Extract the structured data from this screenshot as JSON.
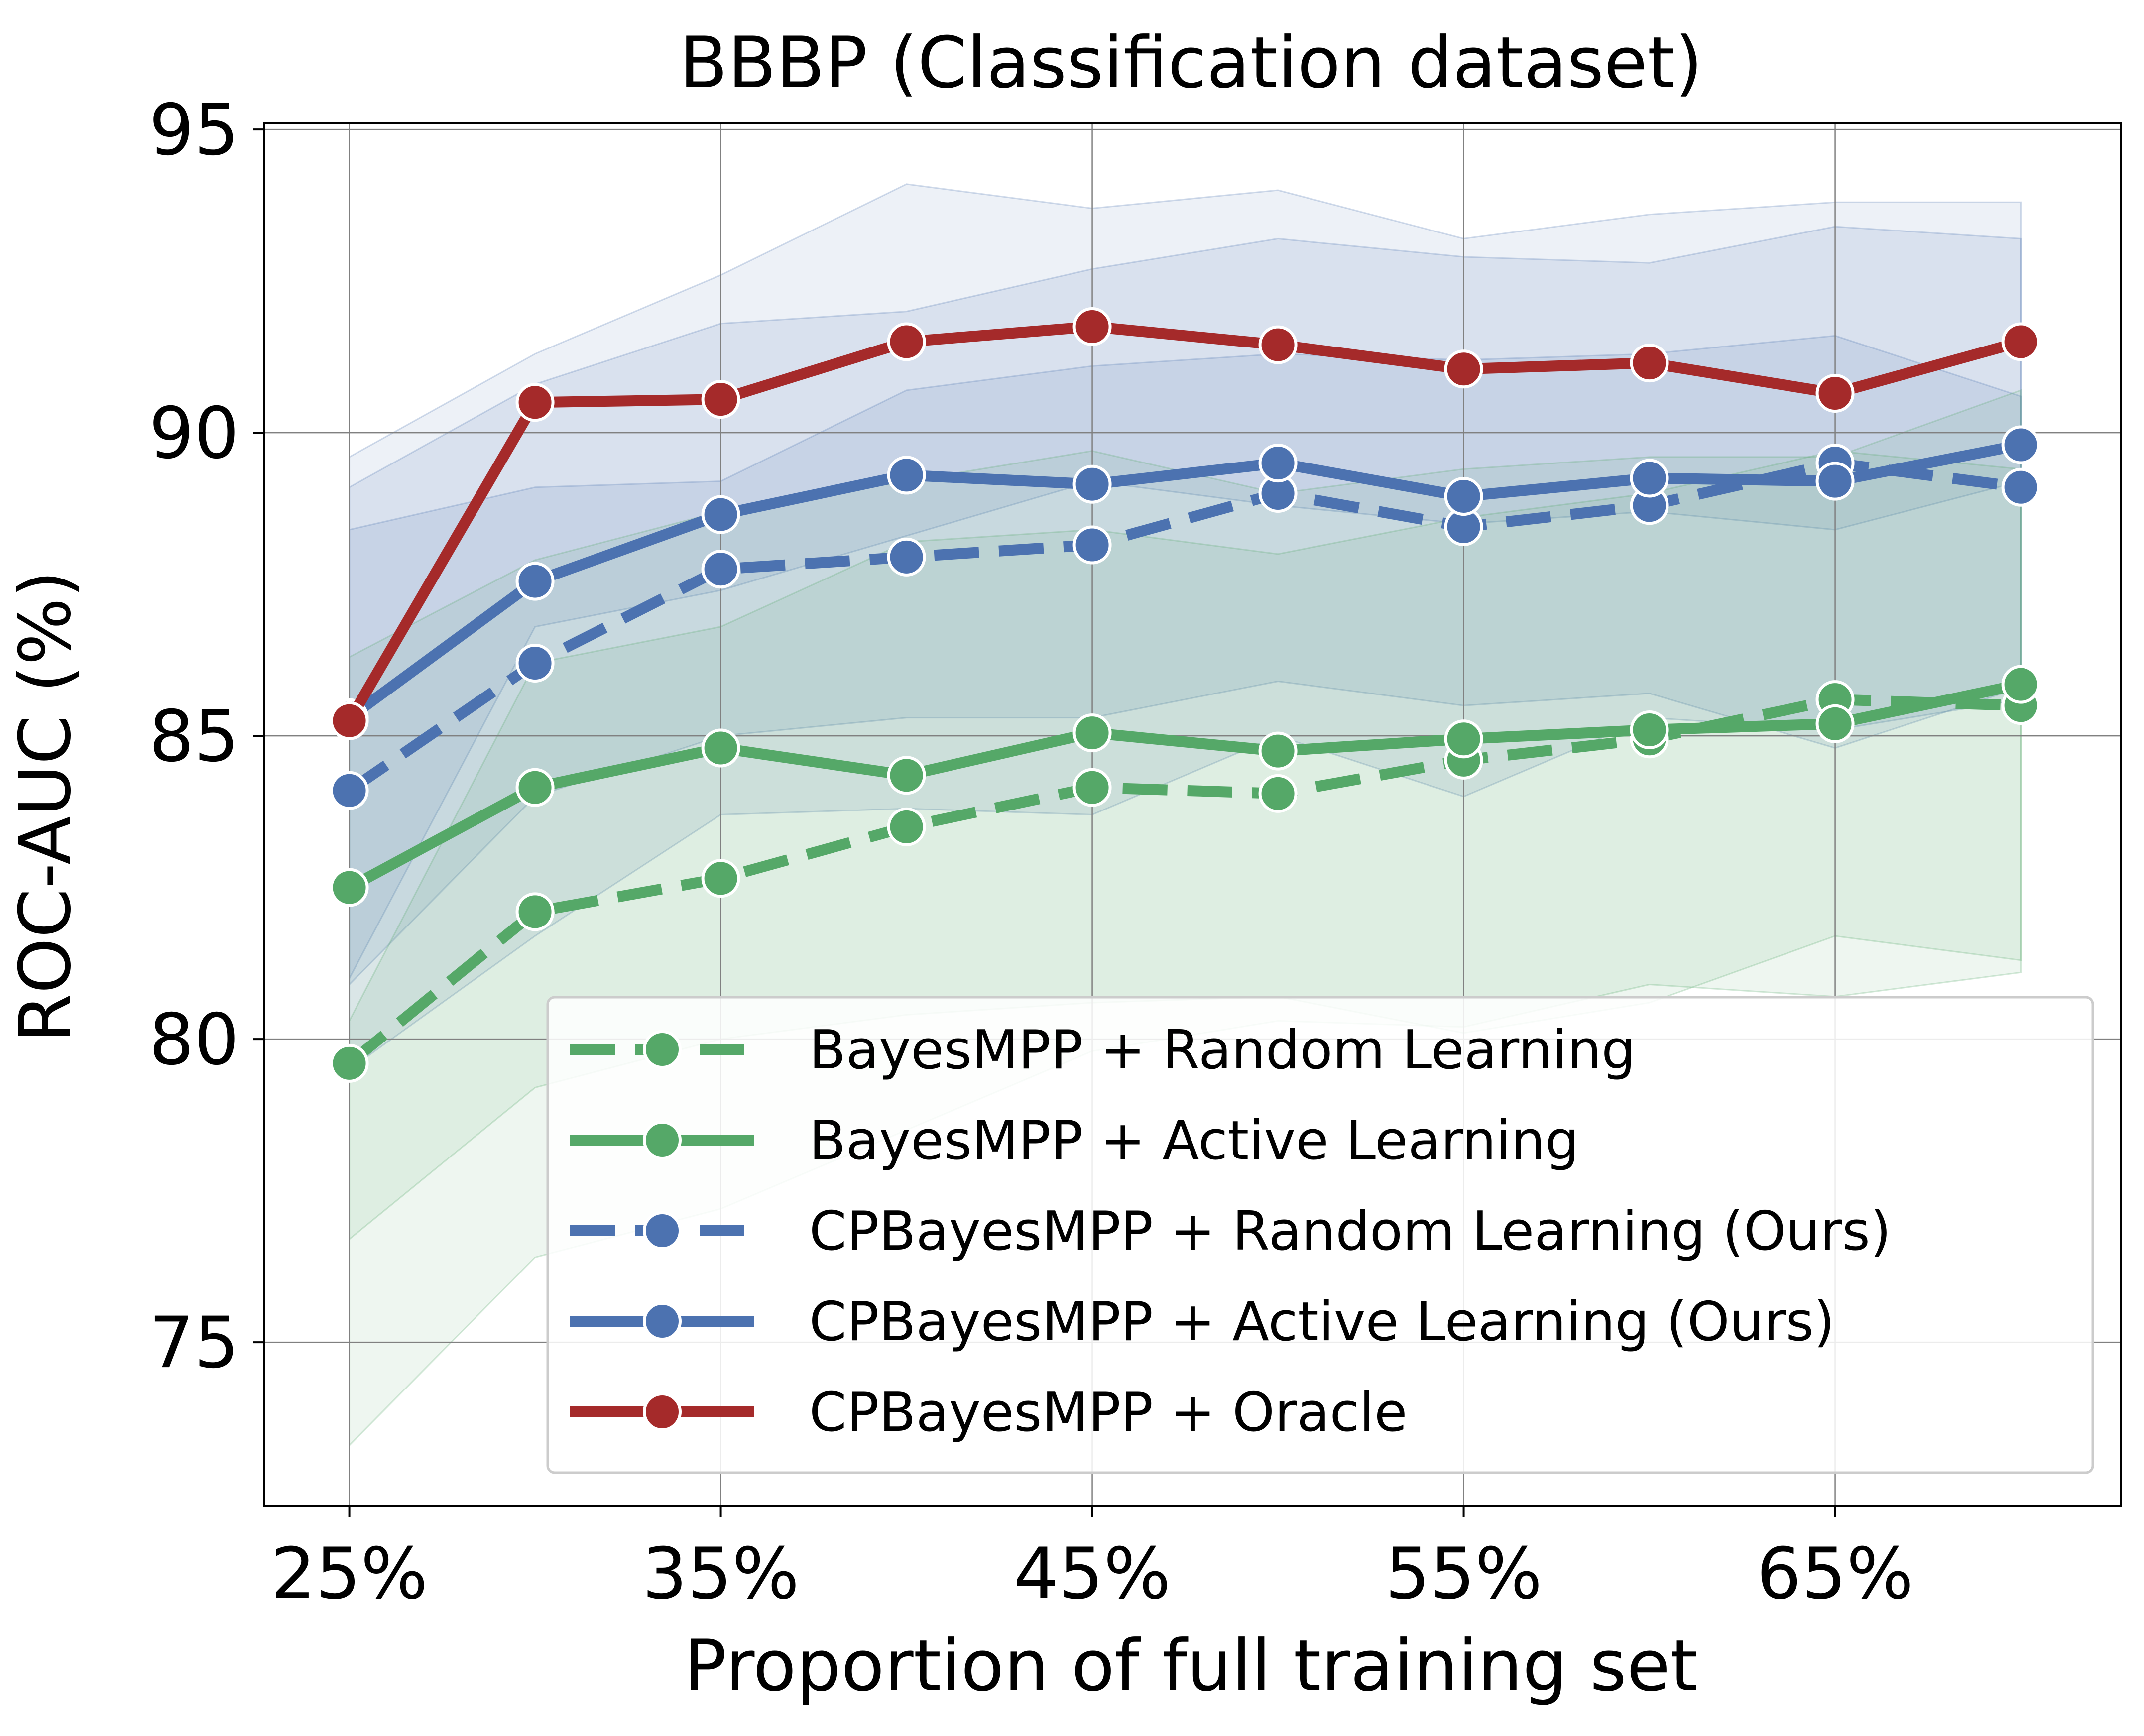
{
  "chart_data": {
    "type": "line",
    "title": "BBBP (Classification dataset)",
    "xlabel": "Proportion of full training set",
    "ylabel": "ROC-AUC (%)",
    "x": [
      25,
      30,
      35,
      40,
      45,
      50,
      55,
      60,
      65,
      70
    ],
    "xticks": [
      25,
      35,
      45,
      55,
      65
    ],
    "xtick_labels": [
      "25%",
      "35%",
      "45%",
      "55%",
      "65%"
    ],
    "xlim": [
      22.7,
      72.7
    ],
    "yticks": [
      75,
      80,
      85,
      90,
      95
    ],
    "ytick_labels": [
      "75",
      "80",
      "85",
      "90",
      "95"
    ],
    "ylim": [
      72.3,
      95.1
    ],
    "grid": true,
    "legend_position": "lower-right",
    "series": [
      {
        "name": "BayesMPP + Random Learning",
        "color": "#55a868",
        "linestyle": "dashed",
        "values": [
          79.6,
          82.1,
          82.65,
          83.5,
          84.15,
          84.05,
          84.6,
          84.95,
          85.6,
          85.5
        ],
        "band_lower": [
          73.3,
          76.4,
          77.2,
          78.5,
          79.8,
          80.3,
          80.2,
          80.9,
          80.7,
          81.1
        ],
        "band_upper": [
          80.3,
          86.2,
          86.8,
          88.2,
          88.4,
          88.0,
          88.6,
          89.0,
          89.7,
          89.4
        ]
      },
      {
        "name": "BayesMPP + Active Learning",
        "color": "#55a868",
        "linestyle": "solid",
        "values": [
          82.5,
          84.15,
          84.8,
          84.35,
          85.05,
          84.75,
          84.95,
          85.1,
          85.2,
          85.85
        ],
        "band_lower": [
          76.7,
          79.2,
          80.0,
          80.4,
          80.6,
          80.7,
          80.1,
          80.6,
          81.7,
          81.3
        ],
        "band_upper": [
          86.3,
          87.9,
          88.7,
          89.2,
          89.7,
          89.0,
          89.4,
          89.6,
          89.6,
          90.7
        ]
      },
      {
        "name": "CPBayesMPP + Random Learning (Ours)",
        "color": "#4c72b0",
        "linestyle": "dashed",
        "values": [
          84.1,
          86.2,
          87.75,
          87.95,
          88.15,
          89.0,
          88.45,
          88.8,
          89.5,
          89.1
        ],
        "band_lower": [
          79.5,
          81.7,
          83.7,
          83.8,
          83.7,
          85.0,
          84.0,
          85.3,
          85.1,
          85.6
        ],
        "band_upper": [
          88.4,
          89.1,
          89.2,
          90.7,
          91.1,
          91.3,
          91.2,
          91.3,
          91.6,
          90.6
        ]
      },
      {
        "name": "CPBayesMPP + Active Learning (Ours)",
        "color": "#4c72b0",
        "linestyle": "solid",
        "values": [
          85.3,
          87.55,
          88.65,
          89.3,
          89.15,
          89.5,
          88.95,
          89.25,
          89.2,
          89.8
        ],
        "band_lower": [
          80.9,
          84.0,
          85.0,
          85.3,
          85.3,
          85.9,
          85.5,
          85.7,
          84.8,
          85.8
        ],
        "band_upper": [
          89.1,
          90.8,
          91.8,
          92.0,
          92.7,
          93.2,
          92.9,
          92.8,
          93.4,
          93.2
        ]
      },
      {
        "name": "CPBayesMPP + Oracle",
        "color": "#a52a2a",
        "linestyle": "solid",
        "values": [
          85.25,
          90.5,
          90.55,
          91.5,
          91.75,
          91.45,
          91.05,
          91.15,
          90.65,
          91.5
        ],
        "band_lower": [
          81.0,
          86.8,
          87.4,
          88.3,
          89.2,
          88.8,
          88.5,
          88.7,
          88.4,
          89.2
        ],
        "band_upper": [
          89.6,
          91.3,
          92.6,
          94.1,
          93.7,
          94.0,
          93.2,
          93.6,
          93.8,
          93.8
        ]
      }
    ]
  }
}
